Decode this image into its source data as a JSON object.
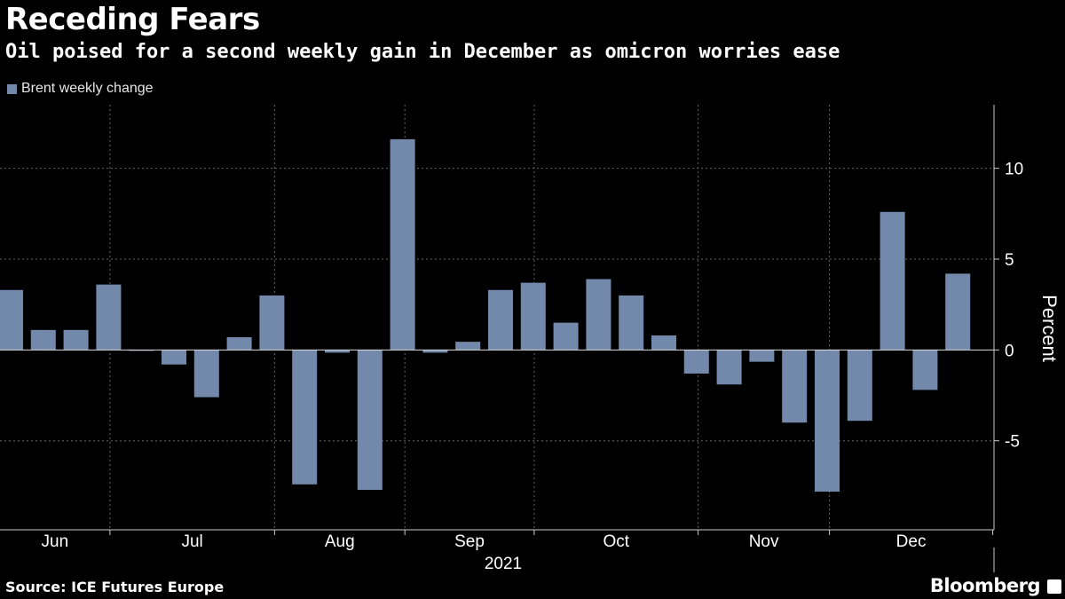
{
  "title": "Receding Fears",
  "subtitle": "Oil poised for a second weekly gain in December as omicron worries ease",
  "source": "Source: ICE Futures Europe",
  "brand": "Bloomberg",
  "chart_data": {
    "type": "bar",
    "legend": [
      {
        "name": "Brent weekly change",
        "color": "#7389ab"
      }
    ],
    "series": [
      {
        "name": "Brent weekly change",
        "values": [
          3.3,
          1.1,
          1.1,
          3.6,
          -0.05,
          -0.8,
          -2.6,
          0.7,
          3.0,
          -7.4,
          -0.15,
          -7.7,
          11.6,
          -0.15,
          0.45,
          3.3,
          3.7,
          1.5,
          3.9,
          3.0,
          0.8,
          -1.3,
          -1.9,
          -0.65,
          -4.0,
          -7.8,
          -3.9,
          7.6,
          -2.2,
          4.2
        ]
      }
    ],
    "ylabel": "Percent",
    "ylim": [
      -9.9,
      13.5
    ],
    "yticks": [
      -5,
      0,
      5,
      10
    ],
    "ytick_labels": [
      "-5",
      "0",
      "5",
      "10"
    ],
    "months": [
      "Jun",
      "Jul",
      "Aug",
      "Sep",
      "Oct",
      "Nov",
      "Dec"
    ],
    "month_boundaries_week_index": [
      3.04,
      8.08,
      12.07,
      16.03,
      21.05,
      25.07,
      30.07
    ],
    "year_label": "2021",
    "grid": true,
    "legend_position": "top-left"
  }
}
